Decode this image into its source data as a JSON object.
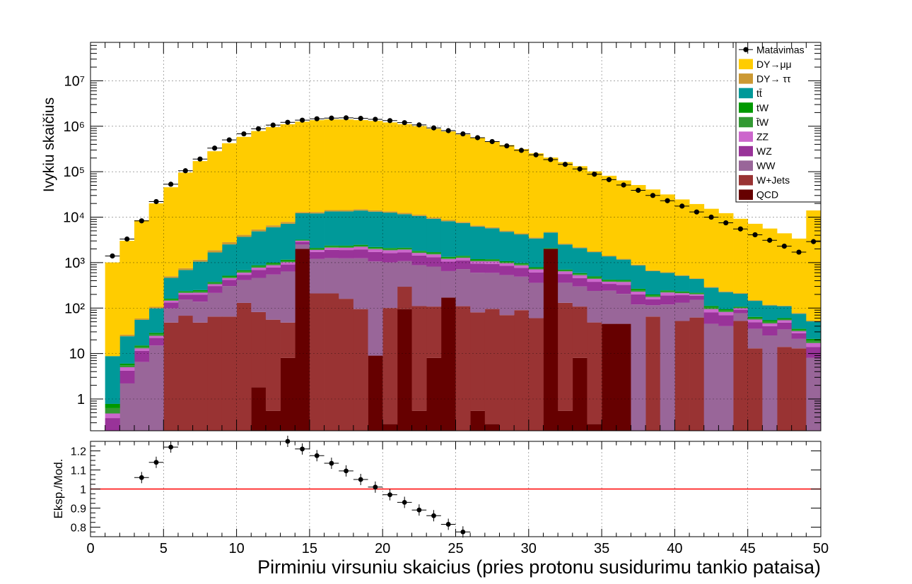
{
  "chart_data": {
    "type": "bar",
    "stacked": true,
    "xlabel": "Pirminiu virsuniu skaicius (pries protonu susidurimu tankio pataisa)",
    "ylabel": "Ivykiu skaičius",
    "ratio_ylabel": "Eksp./Mod.",
    "x": [
      1.5,
      2.5,
      3.5,
      4.5,
      5.5,
      6.5,
      7.5,
      8.5,
      9.5,
      10.5,
      11.5,
      12.5,
      13.5,
      14.5,
      15.5,
      16.5,
      17.5,
      18.5,
      19.5,
      20.5,
      21.5,
      22.5,
      23.5,
      24.5,
      25.5,
      26.5,
      27.5,
      28.5,
      29.5,
      30.5,
      31.5,
      32.5,
      33.5,
      34.5,
      35.5,
      36.5,
      37.5,
      38.5,
      39.5,
      40.5,
      41.5,
      42.5,
      43.5,
      44.5,
      45.5,
      46.5,
      47.5,
      48.5,
      49.5
    ],
    "xlim": [
      0,
      50
    ],
    "ylim": [
      0.2,
      70000000
    ],
    "ratio_ylim": [
      0.75,
      1.25
    ],
    "log_y": true,
    "x_ticks": [
      0,
      5,
      10,
      15,
      20,
      25,
      30,
      35,
      40,
      45,
      50
    ],
    "y_tick_labels": [
      "1",
      "10",
      "10²",
      "10³",
      "10⁴",
      "10⁵",
      "10⁶",
      "10⁷"
    ],
    "ratio_ticks": [
      "0.8",
      "0.9",
      "1",
      "1.1",
      "1.2"
    ],
    "ratio_reference": 1,
    "legend_position": "top-right",
    "series": [
      {
        "name": "QCD",
        "color": "#660000",
        "values": [
          0,
          0,
          0,
          0,
          0,
          0,
          0,
          0,
          0,
          0,
          1.8,
          0.55,
          8,
          2000,
          0,
          0,
          0,
          0,
          9,
          0.28,
          95,
          0.55,
          8,
          170,
          0,
          0.55,
          0.28,
          0,
          0,
          0,
          2000,
          0.55,
          8,
          0.28,
          45,
          45,
          0,
          0,
          0,
          0,
          0,
          0,
          0,
          0,
          0,
          0,
          0,
          0,
          0
        ]
      },
      {
        "name": "W+Jets",
        "color": "#993333",
        "values": [
          0,
          0,
          0,
          0,
          48,
          68,
          48,
          65,
          65,
          130,
          80,
          55,
          40,
          0,
          210,
          210,
          160,
          95,
          0,
          100,
          200,
          110,
          100,
          0,
          110,
          80,
          95,
          70,
          90,
          60,
          0,
          130,
          100,
          48,
          0,
          0,
          0,
          65,
          0,
          52,
          62,
          0,
          0,
          52,
          13,
          0,
          14,
          13,
          0
        ]
      },
      {
        "name": "WW",
        "color": "#996699",
        "values": [
          0.18,
          2.2,
          6.5,
          15,
          50,
          85,
          90,
          150,
          240,
          280,
          380,
          490,
          590,
          490,
          1000,
          1050,
          1080,
          1150,
          1050,
          910,
          780,
          770,
          710,
          480,
          610,
          520,
          500,
          460,
          400,
          300,
          0,
          230,
          190,
          190,
          195,
          160,
          120,
          50,
          120,
          80,
          90,
          45,
          40,
          25,
          22,
          25,
          20,
          8,
          8
        ]
      },
      {
        "name": "WZ",
        "color": "#993399",
        "values": [
          0.2,
          2,
          5,
          7,
          35,
          45,
          60,
          90,
          110,
          130,
          230,
          230,
          270,
          380,
          500,
          650,
          650,
          710,
          650,
          610,
          600,
          550,
          500,
          400,
          400,
          350,
          340,
          320,
          280,
          250,
          0,
          200,
          160,
          140,
          100,
          120,
          80,
          40,
          70,
          60,
          35,
          35,
          30,
          15,
          14,
          15,
          14,
          7,
          6
        ]
      },
      {
        "name": "ZZ",
        "color": "#cc66cc",
        "values": [
          0.1,
          0.8,
          1.5,
          2.5,
          12,
          18,
          20,
          30,
          40,
          60,
          80,
          100,
          110,
          150,
          190,
          220,
          230,
          270,
          270,
          250,
          250,
          200,
          200,
          150,
          150,
          120,
          130,
          120,
          100,
          100,
          0,
          80,
          70,
          60,
          40,
          50,
          30,
          20,
          30,
          20,
          14,
          15,
          12,
          7,
          7,
          6,
          6,
          3,
          3
        ]
      },
      {
        "name": "t̄W",
        "color": "#339933",
        "values": [
          0.15,
          0.5,
          1,
          2,
          8,
          10,
          15,
          20,
          30,
          40,
          50,
          60,
          70,
          80,
          100,
          120,
          120,
          120,
          110,
          110,
          100,
          90,
          90,
          70,
          70,
          60,
          60,
          50,
          50,
          40,
          40,
          30,
          30,
          30,
          20,
          20,
          18,
          12,
          12,
          10,
          8,
          8,
          6,
          4,
          4,
          4,
          3,
          2,
          2
        ]
      },
      {
        "name": "tW",
        "color": "#009900",
        "values": [
          0.15,
          0.5,
          1,
          2,
          8,
          10,
          15,
          20,
          30,
          40,
          50,
          60,
          70,
          80,
          100,
          120,
          120,
          120,
          110,
          110,
          100,
          90,
          90,
          70,
          70,
          60,
          60,
          50,
          50,
          40,
          40,
          30,
          30,
          30,
          20,
          20,
          18,
          12,
          12,
          10,
          8,
          8,
          6,
          4,
          4,
          4,
          3,
          2,
          2
        ]
      },
      {
        "name": "tt̄",
        "color": "#009999",
        "values": [
          8,
          18,
          40,
          70,
          300,
          450,
          800,
          1300,
          2000,
          3000,
          4000,
          5000,
          6000,
          9000,
          10000,
          11000,
          11000,
          11500,
          11000,
          10500,
          9500,
          8800,
          7500,
          6800,
          6000,
          5000,
          4500,
          3700,
          3200,
          2600,
          2500,
          1800,
          1500,
          1200,
          950,
          750,
          600,
          450,
          350,
          280,
          220,
          170,
          130,
          100,
          80,
          60,
          50,
          40,
          30
        ]
      },
      {
        "name": "DY→ ττ",
        "color": "#cc9933",
        "values": [
          0,
          2,
          4,
          8,
          40,
          70,
          110,
          200,
          300,
          400,
          500,
          600,
          700,
          800,
          900,
          950,
          950,
          950,
          900,
          850,
          800,
          700,
          600,
          550,
          450,
          380,
          320,
          280,
          230,
          180,
          140,
          110,
          90,
          70,
          55,
          45,
          35,
          28,
          22,
          18,
          14,
          11,
          9,
          7,
          5,
          4,
          3,
          3,
          2
        ]
      },
      {
        "name": "DY→μμ",
        "color": "#ffcc00",
        "values": [
          1000,
          3000,
          8500,
          20000,
          45000,
          95000,
          170000,
          280000,
          420000,
          580000,
          780000,
          950000,
          1100000,
          1250000,
          1350000,
          1400000,
          1400000,
          1350000,
          1300000,
          1200000,
          1100000,
          1000000,
          870000,
          760000,
          650000,
          550000,
          460000,
          380000,
          310000,
          250000,
          200000,
          160000,
          130000,
          100000,
          80000,
          63000,
          50000,
          40000,
          31000,
          24000,
          19000,
          15000,
          12000,
          9000,
          7000,
          5500,
          4300,
          3300,
          14000
        ]
      }
    ],
    "data_series": {
      "name": "Matavimas",
      "values": [
        1400,
        3300,
        8300,
        22000,
        53000,
        105000,
        190000,
        330000,
        500000,
        680000,
        880000,
        1060000,
        1220000,
        1360000,
        1460000,
        1510000,
        1530000,
        1490000,
        1420000,
        1330000,
        1200000,
        1070000,
        920000,
        800000,
        680000,
        560000,
        460000,
        370000,
        295000,
        235000,
        185000,
        145000,
        115000,
        88000,
        67000,
        51000,
        39000,
        30000,
        23000,
        17500,
        13000,
        10000,
        7500,
        5500,
        4100,
        3100,
        2300,
        1700,
        2900
      ]
    },
    "ratio_points": {
      "x": [
        3.5,
        4.5,
        5.5,
        13.5,
        14.5,
        15.5,
        16.5,
        17.5,
        18.5,
        19.5,
        20.5,
        21.5,
        22.5,
        23.5,
        24.5,
        25.5
      ],
      "values": [
        1.06,
        1.14,
        1.22,
        1.25,
        1.21,
        1.175,
        1.135,
        1.095,
        1.05,
        1.01,
        0.97,
        0.93,
        0.89,
        0.86,
        0.815,
        0.775
      ]
    }
  }
}
